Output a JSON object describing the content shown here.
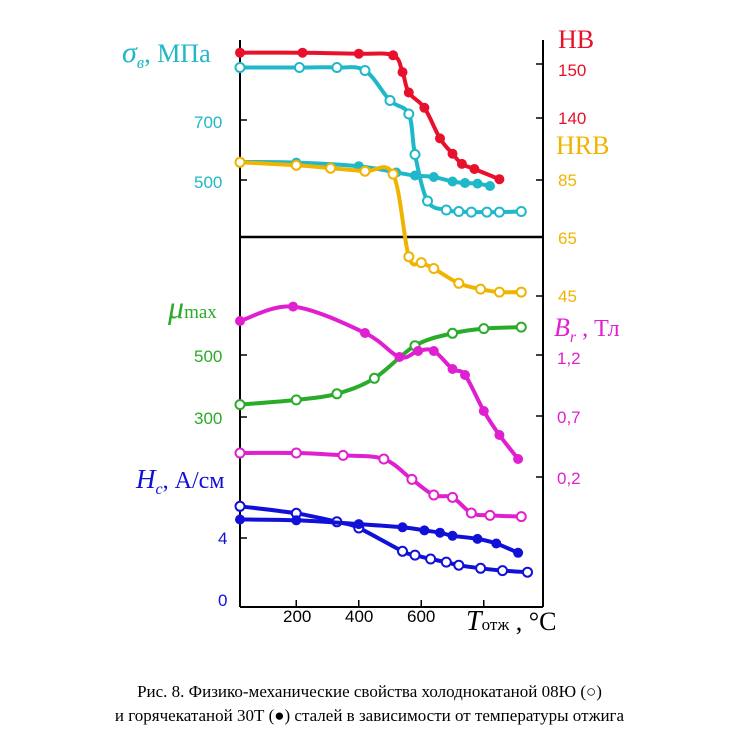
{
  "caption": {
    "line1": "Рис. 8. Физико-механические свойства холоднокатаной 08Ю (○)",
    "line2": "и горячекатаной 30Т (●) сталей в зависимости от температуры отжига"
  },
  "chart_data": {
    "type": "line",
    "xlabel": {
      "sym": "T",
      "sub": "отж",
      "unit": " , °C"
    },
    "xticks": [
      "200",
      "400",
      "600"
    ],
    "legend_markers": {
      "open": "○ 08Ю (холоднокатаная)",
      "filled": "● 30Т (горячекатаная)"
    },
    "panels": {
      "top": {
        "left_axis": {
          "label_sym": "σ",
          "label_sub": "в",
          "label_unit": ", МПа",
          "ticks": [
            "700",
            "500"
          ],
          "color": "#1fb8c8"
        },
        "right_axis_hb": {
          "label": "HB",
          "ticks": [
            "150",
            "140"
          ],
          "color": "#e8102a"
        },
        "right_axis_hrb": {
          "label": "HRB",
          "ticks": [
            "85",
            "65",
            "45"
          ],
          "color": "#f0b400"
        }
      },
      "bottom": {
        "left_axis_mu": {
          "label_sym": "μ",
          "label_sub": "max",
          "ticks": [
            "500",
            "300"
          ],
          "color": "#2aab2a"
        },
        "right_axis_br": {
          "label_sym": "B",
          "label_sub": "r",
          "label_unit": " , Тл",
          "ticks": [
            "1,2",
            "0,7",
            "0,2"
          ],
          "color": "#e020d0"
        },
        "left_axis_hc": {
          "label_sym": "H",
          "label_sub": "c",
          "label_unit": ", А/см",
          "ticks": [
            "4",
            "0"
          ],
          "color": "#1010d8"
        }
      }
    },
    "series": [
      {
        "name": "HB 30Т",
        "group": "top",
        "color": "#e8102a",
        "marker": "filled",
        "x": [
          20,
          220,
          400,
          510,
          540,
          560,
          610,
          660,
          700,
          730,
          770,
          850
        ],
        "y": [
          152.8,
          152.8,
          152.6,
          152.3,
          149,
          145,
          142,
          136,
          133,
          131,
          130,
          128
        ]
      },
      {
        "name": "σв 08Ю",
        "group": "top",
        "color": "#1fb8c8",
        "marker": "open",
        "x": [
          20,
          210,
          330,
          420,
          500,
          560,
          580,
          620,
          680,
          720,
          760,
          810,
          850,
          920
        ],
        "y": [
          875,
          875,
          875,
          865,
          765,
          720,
          585,
          430,
          400,
          395,
          393,
          393,
          393,
          395
        ]
      },
      {
        "name": "σв 30Т",
        "group": "top",
        "color": "#1fb8c8",
        "marker": "filled",
        "x": [
          20,
          200,
          400,
          520,
          580,
          640,
          700,
          740,
          780,
          820
        ],
        "y": [
          560,
          558,
          546,
          525,
          515,
          510,
          495,
          490,
          488,
          480
        ]
      },
      {
        "name": "HRB 08Ю",
        "group": "top",
        "color": "#f0b400",
        "marker": "open",
        "x": [
          20,
          200,
          310,
          420,
          510,
          560,
          600,
          640,
          720,
          790,
          850,
          920
        ],
        "y": [
          91,
          90,
          89,
          88,
          87,
          59,
          57,
          55,
          50,
          48,
          47,
          47
        ]
      },
      {
        "name": "μmax 08Ю",
        "group": "bottom",
        "color": "#2aab2a",
        "marker": "open",
        "x": [
          20,
          200,
          330,
          450,
          580,
          700,
          800,
          920
        ],
        "y": [
          340,
          355,
          375,
          425,
          530,
          570,
          585,
          590
        ]
      },
      {
        "name": "Br 30Т",
        "group": "bottom",
        "color": "#e020d0",
        "marker": "filled",
        "x": [
          20,
          190,
          420,
          530,
          590,
          640,
          700,
          740,
          800,
          850,
          910
        ],
        "y": [
          1.5,
          1.62,
          1.4,
          1.2,
          1.25,
          1.25,
          1.1,
          1.05,
          0.75,
          0.55,
          0.35
        ]
      },
      {
        "name": "Br 08Ю",
        "group": "bottom",
        "color": "#e020d0",
        "marker": "open",
        "x": [
          20,
          200,
          350,
          480,
          570,
          640,
          700,
          760,
          820,
          920
        ],
        "y": [
          0.4,
          0.4,
          0.38,
          0.35,
          0.18,
          0.05,
          0.03,
          -0.1,
          -0.12,
          -0.13
        ]
      },
      {
        "name": "Hc 08Ю",
        "group": "bottom",
        "color": "#1010d8",
        "marker": "open",
        "x": [
          20,
          200,
          330,
          400,
          540,
          580,
          630,
          680,
          720,
          790,
          860,
          940
        ],
        "y": [
          5.85,
          5.4,
          4.85,
          4.45,
          2.95,
          2.7,
          2.45,
          2.25,
          2.05,
          1.85,
          1.7,
          1.6
        ]
      },
      {
        "name": "Hc 30Т",
        "group": "bottom",
        "color": "#1010d8",
        "marker": "filled",
        "x": [
          20,
          200,
          400,
          540,
          610,
          660,
          700,
          780,
          840,
          910
        ],
        "y": [
          5.0,
          4.95,
          4.7,
          4.5,
          4.3,
          4.15,
          3.95,
          3.75,
          3.45,
          2.85
        ]
      }
    ]
  }
}
